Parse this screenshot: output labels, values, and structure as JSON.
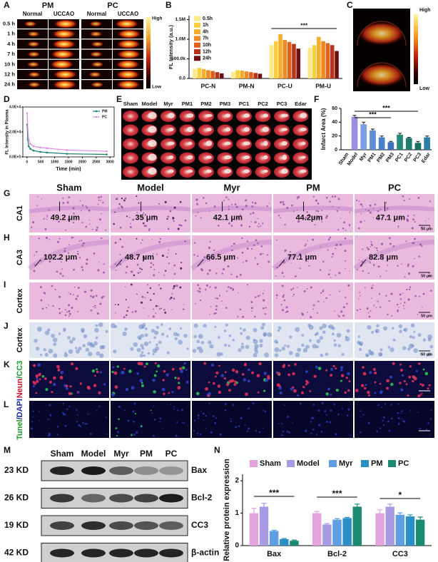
{
  "panel_letters": [
    "A",
    "B",
    "C",
    "D",
    "E",
    "F",
    "G",
    "H",
    "I",
    "J",
    "K",
    "L",
    "M",
    "N"
  ],
  "panel_a": {
    "groups": [
      "PM",
      "PC"
    ],
    "columns": [
      "Normal",
      "UCCAO",
      "Normal",
      "UCCAO"
    ],
    "rows": [
      "0.5 h",
      "1 h",
      "4 h",
      "7 h",
      "10 h",
      "12 h",
      "24 h"
    ],
    "scale": [
      "High",
      "Low"
    ]
  },
  "panel_c": {
    "scale": [
      "High",
      "Low"
    ]
  },
  "panel_e": {
    "columns": [
      "Sham",
      "Model",
      "Myr",
      "PM1",
      "PM2",
      "PM3",
      "PC1",
      "PC2",
      "PC3",
      "Edar"
    ]
  },
  "histology": {
    "columns": [
      "Sham",
      "Model",
      "Myr",
      "PM",
      "PC"
    ],
    "rows": [
      {
        "label": [
          "CA1"
        ],
        "measurements": [
          "49.2 μm",
          "35 μm",
          "42.1 μm",
          "44.2μm",
          "47.1 μm"
        ],
        "scale_bar": "50 μm"
      },
      {
        "label": [
          "CA3"
        ],
        "measurements": [
          "102.2 μm",
          "48.7 μm",
          "66.5 μm",
          "77.1 μm",
          "82.8 μm"
        ],
        "scale_bar": "50 μm"
      },
      {
        "label": [
          "Cortex"
        ],
        "scale_bar": "50 μm"
      },
      {
        "label": [
          "Cortex"
        ],
        "scale_bar": "50 μm"
      },
      {
        "label": [
          "Neun",
          "/CC3"
        ],
        "scale_bar": "50 μm"
      },
      {
        "label": [
          "Tunel",
          "/DAPI"
        ],
        "scale_bar": "100 μm"
      }
    ]
  },
  "western_blot": {
    "lanes": [
      "Sham",
      "Model",
      "Myr",
      "PM",
      "PC"
    ],
    "rows": [
      {
        "size": "23 KD",
        "protein": "Bax"
      },
      {
        "size": "26 KD",
        "protein": "Bcl-2"
      },
      {
        "size": "19 KD",
        "protein": "CC3"
      },
      {
        "size": "42 KD",
        "protein": "β-actin"
      }
    ]
  },
  "chart_data": [
    {
      "type": "bar",
      "y_label": "FL Intensity (a.u.)",
      "categories": [
        "PC-N",
        "PM-N",
        "PC-U",
        "PM-U"
      ],
      "series": [
        {
          "name": "0.5h",
          "color": "#fde98a",
          "values": [
            240000,
            170000,
            850000,
            780000
          ]
        },
        {
          "name": "1h",
          "color": "#f9cf3e",
          "values": [
            270000,
            210000,
            950000,
            850000
          ]
        },
        {
          "name": "4h",
          "color": "#f6ad2b",
          "values": [
            240000,
            200000,
            1130000,
            1060000
          ]
        },
        {
          "name": "7h",
          "color": "#ee8a22",
          "values": [
            210000,
            180000,
            980000,
            950000
          ]
        },
        {
          "name": "10h",
          "color": "#e0611c",
          "values": [
            190000,
            160000,
            930000,
            900000
          ]
        },
        {
          "name": "12h",
          "color": "#b9331a",
          "values": [
            160000,
            140000,
            880000,
            850000
          ]
        },
        {
          "name": "24h",
          "color": "#6e1010",
          "values": [
            130000,
            120000,
            760000,
            700000
          ]
        }
      ],
      "ylim": [
        0,
        1600000
      ],
      "yticks": [
        {
          "value": 0,
          "label": "0.0"
        },
        {
          "value": 500000,
          "label": "500.0k"
        },
        {
          "value": 1000000,
          "label": "1.0M"
        },
        {
          "value": 1500000,
          "label": "1.5M"
        }
      ],
      "annotations": [
        "***"
      ],
      "legend": "upper left"
    },
    {
      "type": "line",
      "x_label": "Time (min)",
      "y_label": "FL Intensity in Plasma",
      "x": [
        5,
        30,
        60,
        120,
        240,
        480,
        720,
        1440,
        2880
      ],
      "series": [
        {
          "name": "PM",
          "color": "#1b7f73",
          "values": [
            26000,
            14000,
            8500,
            6500,
            5000,
            4000,
            3500,
            2500,
            2000
          ]
        },
        {
          "name": "PC",
          "color": "#d98ee0",
          "values": [
            35000,
            22000,
            14000,
            10500,
            8500,
            7500,
            7000,
            5500,
            4500
          ]
        }
      ],
      "xlim": [
        -150,
        3150
      ],
      "xticks": [
        0,
        500,
        1000,
        1500,
        2000,
        2500,
        3000
      ],
      "ylim": [
        0,
        40000
      ],
      "yticks": [
        {
          "value": 0,
          "label": "0.0E+0"
        },
        {
          "value": 20000,
          "label": "2.0E+4"
        },
        {
          "value": 40000,
          "label": "4.0E+4"
        }
      ],
      "legend": "upper right"
    },
    {
      "type": "bar",
      "y_label": "Infarct Area (%)",
      "categories": [
        "Sham",
        "Model",
        "Myr",
        "PM1",
        "PM2",
        "PM3",
        "PC1",
        "PC2",
        "PC3",
        "Edar"
      ],
      "values": [
        0,
        48,
        37,
        28,
        18,
        11,
        22,
        17,
        10,
        18
      ],
      "errors": [
        0,
        2,
        3,
        2,
        2,
        1,
        2,
        1,
        2,
        2
      ],
      "colors": [
        "#c3b3ec",
        "#9d8ee0",
        "#7f9fe0",
        "#5d8fd6",
        "#4a7fca",
        "#3a6fbe",
        "#2a8a7a",
        "#1f7d6e",
        "#177060",
        "#2d7fa5"
      ],
      "ylim": [
        0,
        60
      ],
      "yticks": [
        0,
        20,
        40,
        60
      ],
      "annotations": [
        "***",
        "***"
      ]
    },
    {
      "type": "bar",
      "y_label": "Relative protein expression",
      "categories": [
        "Bax",
        "Bcl-2",
        "CC3"
      ],
      "series": [
        {
          "name": "Sham",
          "color": "#e3a3dc",
          "values": [
            1.0,
            1.0,
            1.0
          ],
          "errors": [
            0.15,
            0.05,
            0.1
          ]
        },
        {
          "name": "Model",
          "color": "#a99be3",
          "values": [
            1.2,
            0.65,
            1.2
          ],
          "errors": [
            0.1,
            0.03,
            0.08
          ]
        },
        {
          "name": "Myr",
          "color": "#5e9fe3",
          "values": [
            0.45,
            0.8,
            0.95
          ],
          "errors": [
            0.02,
            0.03,
            0.06
          ]
        },
        {
          "name": "PM",
          "color": "#2a8fc4",
          "values": [
            0.2,
            0.85,
            0.9
          ],
          "errors": [
            0.02,
            0.02,
            0.05
          ]
        },
        {
          "name": "PC",
          "color": "#1a8a72",
          "values": [
            0.15,
            1.2,
            0.8
          ],
          "errors": [
            0.02,
            0.08,
            0.08
          ]
        }
      ],
      "ylim": [
        0,
        2.2
      ],
      "yticks": [
        0,
        1,
        2
      ],
      "annotations": [
        "***",
        "***",
        "*"
      ],
      "legend": "top"
    }
  ]
}
